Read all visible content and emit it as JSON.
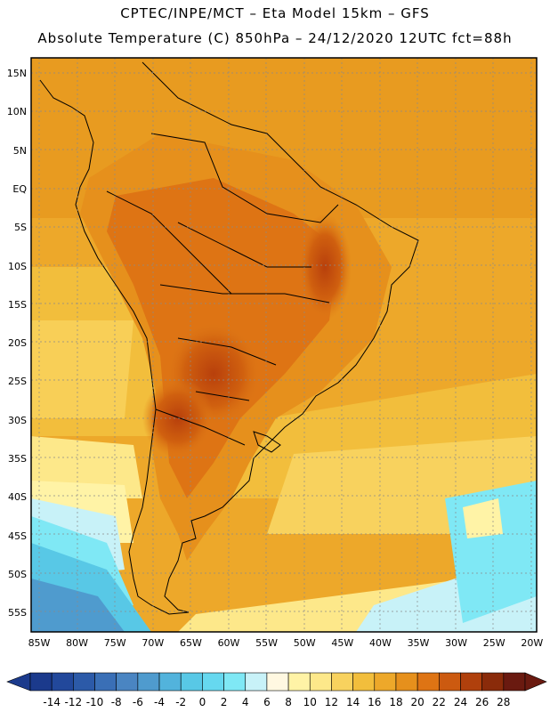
{
  "title": {
    "line1": "CPTEC/INPE/MCT –   Eta Model 15km – GFS",
    "line2": "Absolute Temperature (C) 850hPa – 24/12/2020 12UTC fct=88h"
  },
  "map": {
    "lat_labels": [
      "15N",
      "10N",
      "5N",
      "EQ",
      "5S",
      "10S",
      "15S",
      "20S",
      "25S",
      "30S",
      "35S",
      "40S",
      "45S",
      "50S",
      "55S"
    ],
    "lon_labels": [
      "85W",
      "80W",
      "75W",
      "70W",
      "65W",
      "60W",
      "55W",
      "50W",
      "45W",
      "40W",
      "35W",
      "30W",
      "25W",
      "20W"
    ]
  },
  "colorbar": {
    "labels": [
      "-14",
      "-12",
      "-10",
      "-8",
      "-6",
      "-4",
      "-2",
      "0",
      "2",
      "4",
      "6",
      "8",
      "10",
      "12",
      "14",
      "16",
      "18",
      "20",
      "22",
      "24",
      "26",
      "28"
    ],
    "colors": [
      "#1b3a8c",
      "#22489b",
      "#2c5aa8",
      "#3a6fb6",
      "#4a85c2",
      "#4f9bce",
      "#52b3dc",
      "#58c8e6",
      "#66d8ef",
      "#7fe8f5",
      "#c8f2f8",
      "#fff8e1",
      "#fff3a6",
      "#fde88a",
      "#f8d25e",
      "#f2be3c",
      "#eda82a",
      "#e6901c",
      "#de7414",
      "#cc5a10",
      "#b0400c",
      "#8a2b0a",
      "#6a1a10"
    ]
  }
}
